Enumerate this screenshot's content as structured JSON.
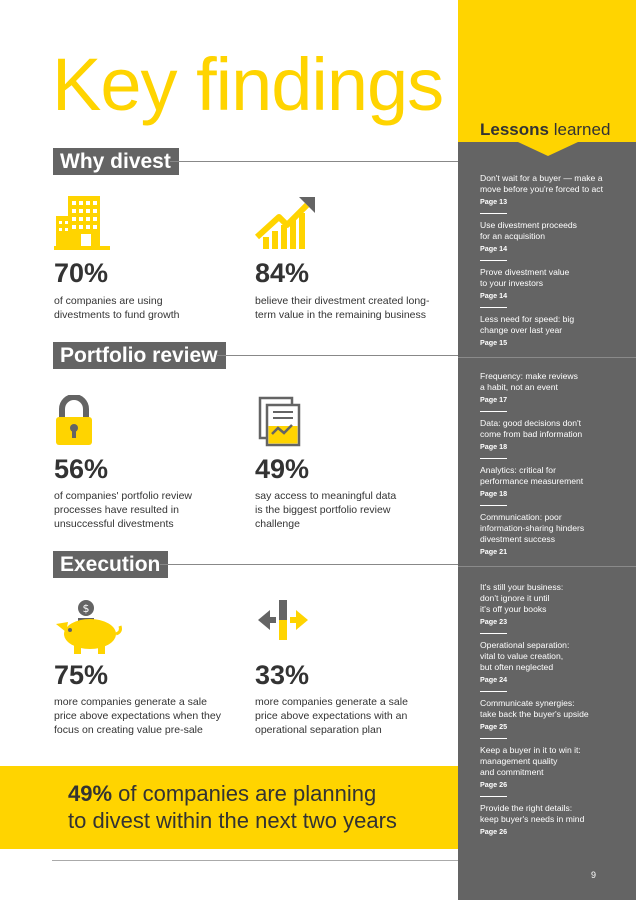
{
  "title": "Key findings",
  "sections": [
    {
      "heading": "Why divest",
      "stats": [
        {
          "value": "70%",
          "text": "of companies are using\ndivestments to fund growth",
          "icon": "office-building-icon"
        },
        {
          "value": "84%",
          "text": "believe their divestment created long-\nterm value in the remaining business",
          "icon": "rising-chart-icon"
        }
      ]
    },
    {
      "heading": "Portfolio review",
      "stats": [
        {
          "value": "56%",
          "text": "of companies' portfolio review\nprocesses have resulted in\nunsuccessful divestments",
          "icon": "padlock-icon"
        },
        {
          "value": "49%",
          "text": "say access to meaningful data\nis the biggest portfolio review\nchallenge",
          "icon": "documents-icon"
        }
      ]
    },
    {
      "heading": "Execution",
      "stats": [
        {
          "value": "75%",
          "text": "more companies generate a sale\nprice above expectations when they\nfocus on creating value pre-sale",
          "icon": "piggy-bank-icon"
        },
        {
          "value": "33%",
          "text": "more companies generate a sale\nprice above expectations with an\noperational separation plan",
          "icon": "split-arrows-icon"
        }
      ]
    }
  ],
  "banner": {
    "highlight": "49%",
    "line1": " of companies are planning",
    "line2": "to divest within the next two years"
  },
  "sidebar": {
    "title_bold": "Lessons",
    "title_light": " learned",
    "lessons": [
      {
        "text": "Don't wait for a buyer — make a\nmove before you're forced to act",
        "page": "Page 13"
      },
      {
        "text": "Use divestment proceeds\nfor an acquisition",
        "page": "Page 14"
      },
      {
        "text": "Prove divestment value\nto your investors",
        "page": "Page 14"
      },
      {
        "text": "Less need for speed: big\nchange over last year",
        "page": "Page 15"
      },
      {
        "text": "Frequency: make reviews\na habit, not an event",
        "page": "Page 17"
      },
      {
        "text": "Data: good decisions don't\ncome from bad information",
        "page": "Page 18"
      },
      {
        "text": "Analytics: critical for\nperformance measurement",
        "page": "Page 18"
      },
      {
        "text": "Communication: poor\ninformation-sharing hinders\ndivestment success",
        "page": "Page 21"
      },
      {
        "text": "It's still your business:\ndon't ignore it until\nit's off your books",
        "page": "Page 23"
      },
      {
        "text": "Operational separation:\nvital to value creation,\nbut often neglected",
        "page": "Page 24"
      },
      {
        "text": "Communicate synergies:\ntake back the buyer's upside",
        "page": "Page 25"
      },
      {
        "text": "Keep a buyer in it to win it:\nmanagement quality\nand commitment",
        "page": "Page 26"
      },
      {
        "text": "Provide the right details:\nkeep buyer's needs in mind",
        "page": "Page 26"
      }
    ]
  },
  "page_number": "9",
  "colors": {
    "accent": "#ffd400",
    "panel": "#646464",
    "text": "#333333"
  }
}
